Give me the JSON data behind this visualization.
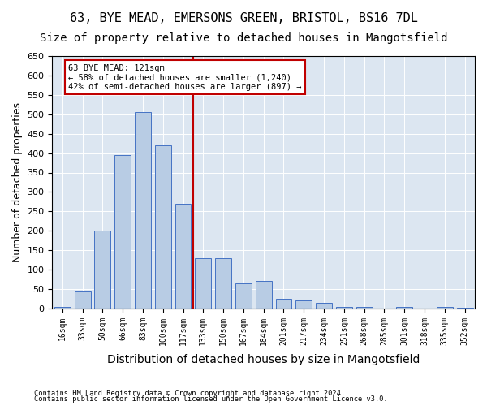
{
  "title1": "63, BYE MEAD, EMERSONS GREEN, BRISTOL, BS16 7DL",
  "title2": "Size of property relative to detached houses in Mangotsfield",
  "xlabel": "Distribution of detached houses by size in Mangotsfield",
  "ylabel": "Number of detached properties",
  "footnote1": "Contains HM Land Registry data © Crown copyright and database right 2024.",
  "footnote2": "Contains public sector information licensed under the Open Government Licence v3.0.",
  "bar_labels": [
    "16sqm",
    "33sqm",
    "50sqm",
    "66sqm",
    "83sqm",
    "100sqm",
    "117sqm",
    "133sqm",
    "150sqm",
    "167sqm",
    "184sqm",
    "201sqm",
    "217sqm",
    "234sqm",
    "251sqm",
    "268sqm",
    "285sqm",
    "301sqm",
    "318sqm",
    "335sqm",
    "352sqm"
  ],
  "bar_values": [
    5,
    45,
    200,
    395,
    505,
    420,
    270,
    130,
    130,
    65,
    70,
    25,
    20,
    15,
    5,
    5,
    0,
    5,
    0,
    5,
    2
  ],
  "bar_color": "#b8cce4",
  "bar_edge_color": "#4472c4",
  "vline_x": 6.5,
  "vline_color": "#c00000",
  "annotation_text": "63 BYE MEAD: 121sqm\n← 58% of detached houses are smaller (1,240)\n42% of semi-detached houses are larger (897) →",
  "annotation_box_color": "#ffffff",
  "annotation_box_edge": "#c00000",
  "ylim": [
    0,
    650
  ],
  "yticks": [
    0,
    50,
    100,
    150,
    200,
    250,
    300,
    350,
    400,
    450,
    500,
    550,
    600,
    650
  ],
  "background_color": "#dce6f1",
  "title1_fontsize": 11,
  "title2_fontsize": 10,
  "xlabel_fontsize": 10,
  "ylabel_fontsize": 9
}
